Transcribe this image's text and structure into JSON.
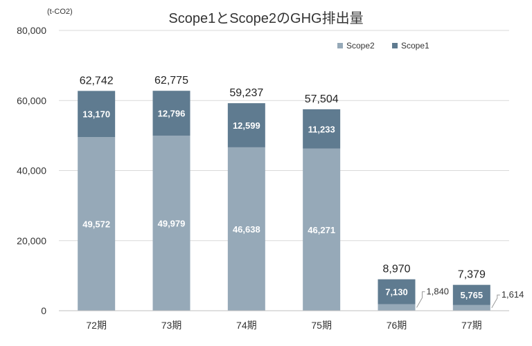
{
  "chart_data": {
    "type": "bar",
    "stacked": true,
    "title": "Scope1とScope2のGHG排出量",
    "ylabel": "(t-CO2)",
    "xlabel": "",
    "categories": [
      "72期",
      "73期",
      "74期",
      "75期",
      "76期",
      "77期"
    ],
    "series": [
      {
        "name": "Scope2",
        "values": [
          49572,
          49979,
          46638,
          46271,
          1840,
          1614
        ],
        "labels": [
          "49,572",
          "49,979",
          "46,638",
          "46,271",
          "1,840",
          "1,614"
        ],
        "color": "#96A9B8"
      },
      {
        "name": "Scope1",
        "values": [
          13170,
          12796,
          12599,
          11233,
          7130,
          5765
        ],
        "labels": [
          "13,170",
          "12,796",
          "12,599",
          "11,233",
          "7,130",
          "5,765"
        ],
        "color": "#5F7B90"
      }
    ],
    "totals": [
      "62,742",
      "62,775",
      "59,237",
      "57,504",
      "8,970",
      "7,379"
    ],
    "ylim": [
      0,
      80000
    ],
    "yticks": [
      0,
      20000,
      40000,
      60000,
      80000
    ],
    "ytick_labels": [
      "0",
      "20,000",
      "40,000",
      "60,000",
      "80,000"
    ],
    "grid": true,
    "legend_position": "top-right"
  }
}
